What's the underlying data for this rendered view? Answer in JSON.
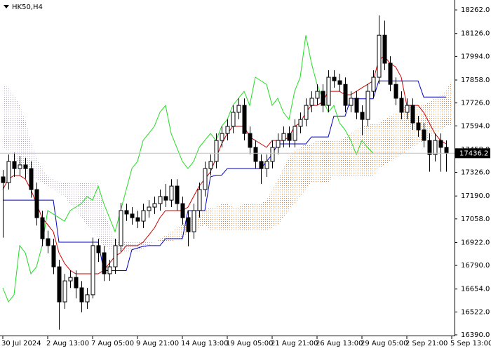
{
  "chart_data": {
    "type": "candlestick",
    "title": "HK50,H4",
    "categories": [
      "30 Jul 2024",
      null,
      null,
      null,
      null,
      null,
      null,
      null,
      "2 Aug 13:00",
      null,
      null,
      null,
      null,
      null,
      null,
      null,
      "7 Aug 05:00",
      null,
      null,
      null,
      null,
      null,
      null,
      null,
      "9 Aug 21:00",
      null,
      null,
      null,
      null,
      null,
      null,
      null,
      "14 Aug 13:00",
      null,
      null,
      null,
      null,
      null,
      null,
      null,
      "19 Aug 05:00",
      null,
      null,
      null,
      null,
      null,
      null,
      null,
      "21 Aug 21:00",
      null,
      null,
      null,
      null,
      null,
      null,
      null,
      "26 Aug 13:00",
      null,
      null,
      null,
      null,
      null,
      null,
      null,
      "29 Aug 05:00",
      null,
      null,
      null,
      null,
      null,
      null,
      null,
      "2 Sep 21:00",
      null,
      null,
      null,
      null,
      null,
      null,
      null,
      "5 Sep 13:00"
    ],
    "open": [
      17300,
      17267,
      17389,
      17348,
      17369,
      17348,
      17227,
      17065,
      16944,
      16904,
      16782,
      16580,
      16701,
      16721,
      16661,
      16580,
      16621,
      16904,
      16863,
      16742,
      16782,
      16904,
      17106,
      17086,
      17065,
      17045,
      17106,
      17126,
      17146,
      17187,
      17166,
      17247,
      17146,
      17065,
      16984,
      17106,
      17227,
      17348,
      17389,
      17510,
      17550,
      17591,
      17672,
      17712,
      17550,
      17470,
      17389,
      17348,
      17389,
      17470,
      17510,
      17550,
      17510,
      17591,
      17631,
      17712,
      17753,
      17793,
      17712,
      17874,
      17854,
      17833,
      17712,
      17753,
      17672,
      17631,
      17793,
      17874,
      18116,
      17955,
      17833,
      17753,
      17672,
      17712,
      17611,
      17571,
      17510,
      17429,
      17510,
      17470,
      null
    ],
    "high": [
      17340,
      17429,
      17440,
      17420,
      17410,
      17390,
      17267,
      17105,
      16990,
      16944,
      16822,
      16741,
      16761,
      16761,
      16700,
      16661,
      16950,
      16944,
      16903,
      16822,
      16944,
      17150,
      17146,
      17126,
      17105,
      17146,
      17166,
      17186,
      17227,
      17260,
      17287,
      17287,
      17186,
      17105,
      17146,
      17267,
      17388,
      17429,
      17550,
      17590,
      17631,
      17712,
      17752,
      17752,
      17590,
      17510,
      17429,
      17429,
      17510,
      17550,
      17590,
      17590,
      17631,
      17671,
      17752,
      17793,
      17833,
      17833,
      17914,
      17914,
      17894,
      17873,
      17793,
      17793,
      17712,
      17833,
      17914,
      18230,
      18200,
      17995,
      17873,
      17793,
      17752,
      17752,
      17651,
      17611,
      17550,
      17550,
      17550,
      17510,
      null
    ],
    "low": [
      16950,
      17227,
      17300,
      17310,
      17290,
      17180,
      17020,
      16900,
      16860,
      16740,
      16420,
      16540,
      16660,
      16600,
      16520,
      16540,
      16600,
      16810,
      16700,
      16702,
      16742,
      16870,
      17046,
      17025,
      17005,
      17005,
      17066,
      17086,
      17106,
      17126,
      17126,
      17106,
      17025,
      16900,
      16944,
      17066,
      17187,
      17308,
      17349,
      17470,
      17510,
      17551,
      17632,
      17510,
      17430,
      17349,
      17260,
      17300,
      17349,
      17430,
      17470,
      17470,
      17470,
      17551,
      17591,
      17672,
      17713,
      17672,
      17672,
      17814,
      17793,
      17672,
      17672,
      17632,
      17540,
      17591,
      17753,
      17834,
      17915,
      17793,
      17713,
      17632,
      17632,
      17571,
      17531,
      17470,
      17330,
      17389,
      17330,
      17330,
      null
    ],
    "close": [
      17267,
      17389,
      17348,
      17369,
      17348,
      17227,
      17065,
      16944,
      16904,
      16782,
      16580,
      16701,
      16721,
      16661,
      16580,
      16621,
      16904,
      16863,
      16742,
      16782,
      16904,
      17106,
      17086,
      17065,
      17045,
      17106,
      17126,
      17146,
      17187,
      17166,
      17247,
      17146,
      17065,
      16984,
      17106,
      17227,
      17348,
      17389,
      17510,
      17550,
      17591,
      17672,
      17712,
      17550,
      17470,
      17389,
      17348,
      17389,
      17470,
      17510,
      17550,
      17510,
      17591,
      17631,
      17712,
      17753,
      17793,
      17712,
      17874,
      17854,
      17833,
      17712,
      17753,
      17672,
      17631,
      17793,
      17874,
      18116,
      17955,
      17833,
      17753,
      17672,
      17712,
      17611,
      17571,
      17510,
      17429,
      17510,
      17470,
      17436,
      null
    ],
    "up_color": "#ffffff",
    "down_color": "#000000",
    "lines": [
      {
        "color": "#d00000",
        "values": [
          17227,
          17288,
          17308,
          17308,
          17288,
          17227,
          17146,
          17065,
          17025,
          16984,
          16863,
          16802,
          16762,
          16742,
          16742,
          16742,
          16742,
          16742,
          16762,
          16802,
          16843,
          16863,
          16904,
          16904,
          16904,
          16924,
          16964,
          17005,
          17065,
          17106,
          17106,
          17106,
          17106,
          17126,
          17187,
          17247,
          17288,
          17328,
          17409,
          17490,
          17550,
          17591,
          17591,
          17591,
          17530,
          17510,
          17490,
          17470,
          17510,
          17510,
          17510,
          17530,
          17591,
          17611,
          17672,
          17712,
          17712,
          17732,
          17793,
          17793,
          17793,
          17773,
          17773,
          17793,
          17813,
          17833,
          17853,
          17975,
          17995,
          17955,
          17934,
          17874,
          17712,
          17712,
          17712,
          17672,
          17611,
          17550,
          17510,
          17490,
          null
        ]
      },
      {
        "color": "#0000c8",
        "values": [
          17166,
          17166,
          17166,
          17166,
          17166,
          17166,
          17166,
          17166,
          17166,
          17166,
          16924,
          16924,
          16924,
          16924,
          16924,
          16924,
          16924,
          16924,
          16760,
          16760,
          16760,
          16760,
          16760,
          16880,
          16890,
          16900,
          16904,
          16904,
          16904,
          16944,
          16944,
          16944,
          16944,
          17106,
          17106,
          17106,
          17106,
          17300,
          17310,
          17310,
          17348,
          17348,
          17348,
          17348,
          17348,
          17348,
          17348,
          17389,
          17429,
          17490,
          17490,
          17490,
          17490,
          17490,
          17490,
          17530,
          17530,
          17530,
          17530,
          17650,
          17650,
          17650,
          17750,
          17750,
          17750,
          17750,
          17750,
          17853,
          17853,
          17853,
          17853,
          17853,
          17853,
          17853,
          17853,
          17760,
          17760,
          17760,
          17760,
          17760,
          null
        ]
      },
      {
        "color": "#22dd22",
        "values": [
          16661,
          16580,
          16621,
          16904,
          16863,
          16742,
          16782,
          16904,
          17106,
          17086,
          17065,
          17045,
          17106,
          17126,
          17146,
          17187,
          17166,
          17247,
          17146,
          17065,
          16984,
          17106,
          17227,
          17348,
          17389,
          17510,
          17550,
          17591,
          17672,
          17712,
          17550,
          17470,
          17389,
          17348,
          17389,
          17470,
          17510,
          17550,
          17510,
          17591,
          17631,
          17712,
          17753,
          17793,
          17712,
          17874,
          17854,
          17833,
          17712,
          17753,
          17672,
          17631,
          17793,
          17874,
          18116,
          17955,
          17833,
          17753,
          17672,
          17712,
          17611,
          17571,
          17510,
          17429,
          17510,
          17470,
          17436,
          null,
          null,
          null,
          null,
          null,
          null,
          null,
          null,
          null,
          null,
          null,
          null,
          null,
          null
        ]
      }
    ],
    "cloud": {
      "span_a": [
        17470,
        17449,
        17409,
        17368,
        17328,
        17308,
        17288,
        17267,
        17247,
        17227,
        17207,
        17187,
        17146,
        17106,
        17065,
        17025,
        16984,
        16944,
        16904,
        16883,
        16863,
        16863,
        16863,
        16863,
        16863,
        16883,
        16904,
        16924,
        16944,
        16964,
        16984,
        17005,
        17025,
        17065,
        17086,
        17106,
        17106,
        17126,
        17126,
        17146,
        17146,
        17126,
        17126,
        17146,
        17146,
        17146,
        17146,
        17166,
        17227,
        17288,
        17348,
        17409,
        17449,
        17470,
        17490,
        17490,
        17510,
        17510,
        17510,
        17510,
        17510,
        17530,
        17550,
        17570,
        17591,
        17591,
        17611,
        17611,
        17631,
        17651,
        17672,
        17692,
        17712,
        17712,
        17712,
        17712,
        17732,
        17753,
        17773,
        17800,
        17853
      ],
      "span_b": [
        17833,
        17813,
        17773,
        17712,
        17631,
        17510,
        17409,
        17348,
        17308,
        17288,
        17267,
        17267,
        17267,
        17267,
        17267,
        17267,
        17267,
        17267,
        17106,
        17025,
        16944,
        16924,
        16924,
        16924,
        16924,
        16924,
        16924,
        16924,
        16924,
        16924,
        16924,
        16944,
        16944,
        16984,
        16984,
        17005,
        17025,
        16984,
        16984,
        16984,
        16984,
        16984,
        16984,
        16984,
        16984,
        16984,
        16984,
        16984,
        17005,
        17025,
        17065,
        17106,
        17146,
        17187,
        17227,
        17267,
        17267,
        17267,
        17267,
        17308,
        17308,
        17308,
        17308,
        17308,
        17308,
        17308,
        17308,
        17348,
        17369,
        17389,
        17409,
        17429,
        17450,
        17470,
        17490,
        17510,
        17530,
        17550,
        17570,
        17591,
        17600
      ],
      "bull_color": "#e0884a",
      "bear_color": "#b4a6c8"
    },
    "last_price": 17436.2,
    "ylim": [
      16386,
      18319
    ],
    "yticks": [
      {
        "value": 18262,
        "label": "18262.0"
      },
      {
        "value": 18126,
        "label": "18126.0"
      },
      {
        "value": 17994,
        "label": "17994.0"
      },
      {
        "value": 17858,
        "label": "17858.0"
      },
      {
        "value": 17726,
        "label": "17726.0"
      },
      {
        "value": 17594,
        "label": "17594.0"
      },
      {
        "value": 17458,
        "label": "17458.0"
      },
      {
        "value": 17326,
        "label": "17326.0"
      },
      {
        "value": 17190,
        "label": "17190.0"
      },
      {
        "value": 17058,
        "label": "17058.0"
      },
      {
        "value": 16922,
        "label": "16922.0"
      },
      {
        "value": 16790,
        "label": "16790.0"
      },
      {
        "value": 16654,
        "label": "16654.0"
      },
      {
        "value": 16522,
        "label": "16522.0"
      },
      {
        "value": 16390,
        "label": "16390.0"
      }
    ],
    "grid": false
  }
}
